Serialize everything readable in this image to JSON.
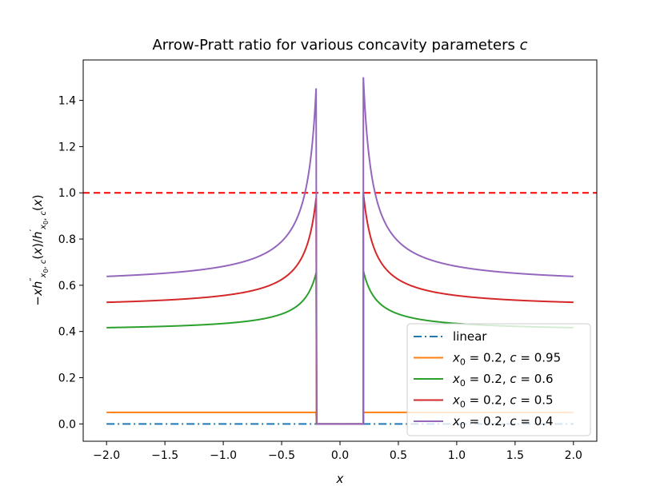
{
  "chart_data": {
    "type": "line",
    "title": "Arrow-Pratt ratio for various concavity parameters c",
    "xlabel": "x",
    "ylabel": "−x h″x0,c(x) / h′x0,c(x)",
    "xlim": [
      -2.2,
      2.2
    ],
    "ylim": [
      -0.075,
      1.575
    ],
    "xticks": [
      -2.0,
      -1.5,
      -1.0,
      -0.5,
      0.0,
      0.5,
      1.0,
      1.5,
      2.0
    ],
    "xtick_labels": [
      "−2.0",
      "−1.5",
      "−1.0",
      "−0.5",
      "0.0",
      "0.5",
      "1.0",
      "1.5",
      "2.0"
    ],
    "yticks": [
      0.0,
      0.2,
      0.4,
      0.6,
      0.8,
      1.0,
      1.2,
      1.4
    ],
    "ytick_labels": [
      "0.0",
      "0.2",
      "0.4",
      "0.6",
      "0.8",
      "1.0",
      "1.2",
      "1.4"
    ],
    "grid": false,
    "legend_position": "lower-right",
    "reference_line": {
      "y": 1.0,
      "color": "#ff0000",
      "style": "dashed"
    },
    "threshold_x0": 0.2,
    "series": [
      {
        "name": "linear",
        "color": "#1f77b4",
        "style": "dashdot",
        "c": 1.0
      },
      {
        "name": "x0 = 0.2, c = 0.95",
        "legend_base": "x",
        "legend_sub": "0",
        "legend_rest": " = 0.2, ",
        "legend_c": "c",
        "legend_val": " = 0.95",
        "color": "#ff7f0e",
        "style": "solid",
        "c": 0.95
      },
      {
        "name": "x0 = 0.2, c = 0.6",
        "legend_base": "x",
        "legend_sub": "0",
        "legend_rest": " = 0.2, ",
        "legend_c": "c",
        "legend_val": " = 0.6",
        "color": "#2ca02c",
        "style": "solid",
        "c": 0.6
      },
      {
        "name": "x0 = 0.2, c = 0.5",
        "legend_base": "x",
        "legend_sub": "0",
        "legend_rest": " = 0.2, ",
        "legend_c": "c",
        "legend_val": " = 0.5",
        "color": "#d62728",
        "style": "solid",
        "c": 0.5
      },
      {
        "name": "x0 = 0.2, c = 0.4",
        "legend_base": "x",
        "legend_sub": "0",
        "legend_rest": " = 0.2, ",
        "legend_c": "c",
        "legend_val": " = 0.4",
        "color": "#9467bd",
        "style": "solid",
        "c": 0.4
      }
    ]
  }
}
